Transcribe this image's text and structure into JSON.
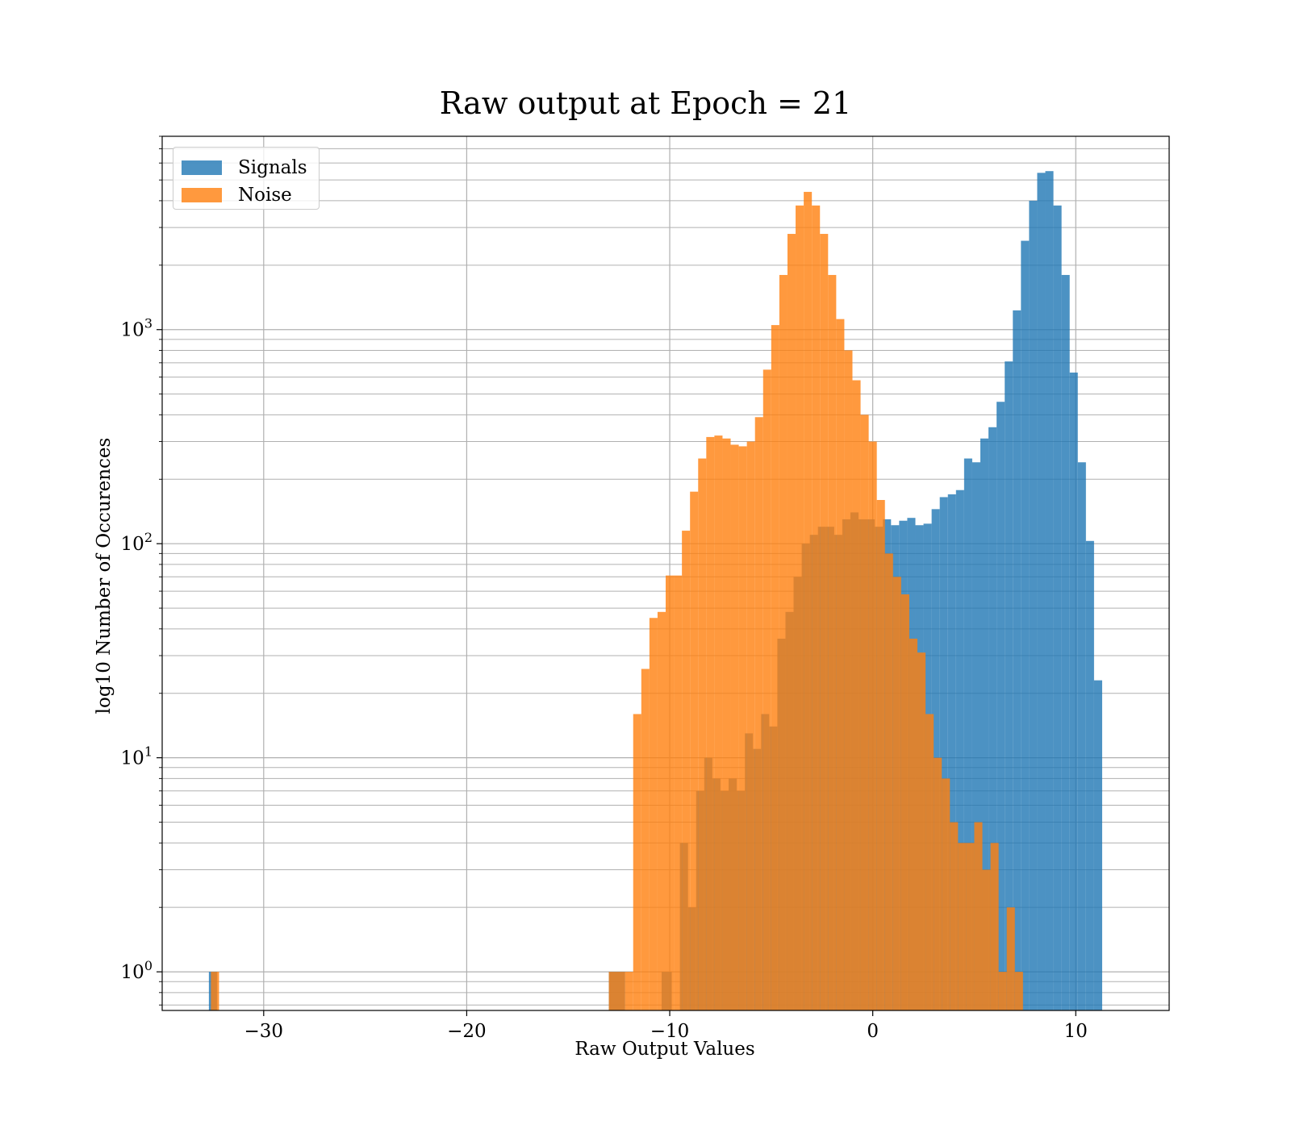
{
  "chart_data": {
    "type": "histogram",
    "title": "Raw output at Epoch = 21",
    "xlabel": "Raw Output Values",
    "ylabel": "log10 Number of Occurences",
    "xlim": [
      -35,
      14.6
    ],
    "ylim": [
      0.66,
      8000
    ],
    "yscale": "log",
    "grid": true,
    "legend_position": "upper-left",
    "x_ticks": [
      {
        "value": -30,
        "label": "−30"
      },
      {
        "value": -20,
        "label": "−20"
      },
      {
        "value": -10,
        "label": "−10"
      },
      {
        "value": 0,
        "label": "0"
      },
      {
        "value": 10,
        "label": "10"
      }
    ],
    "y_ticks": [
      {
        "value": 1,
        "base": "10",
        "exp": "0"
      },
      {
        "value": 10,
        "base": "10",
        "exp": "1"
      },
      {
        "value": 100,
        "base": "10",
        "exp": "2"
      },
      {
        "value": 1000,
        "base": "10",
        "exp": "3"
      }
    ],
    "series": [
      {
        "name": "Signals",
        "color": "#1f77b4",
        "opacity": 0.8,
        "bins": [
          [
            -32.7,
            -32.3,
            1
          ],
          [
            -13.0,
            -12.2,
            1
          ],
          [
            -10.4,
            -9.9,
            1
          ],
          [
            -9.5,
            -9.1,
            4
          ],
          [
            -9.1,
            -8.7,
            2
          ],
          [
            -8.7,
            -8.3,
            7
          ],
          [
            -8.3,
            -7.9,
            10
          ],
          [
            -7.9,
            -7.5,
            8
          ],
          [
            -7.5,
            -7.1,
            7
          ],
          [
            -7.1,
            -6.7,
            8
          ],
          [
            -6.7,
            -6.3,
            7
          ],
          [
            -6.3,
            -5.9,
            13
          ],
          [
            -5.9,
            -5.5,
            11
          ],
          [
            -5.5,
            -5.1,
            16
          ],
          [
            -5.1,
            -4.7,
            14
          ],
          [
            -4.7,
            -4.3,
            36
          ],
          [
            -4.3,
            -3.9,
            48
          ],
          [
            -3.9,
            -3.5,
            70
          ],
          [
            -3.5,
            -3.1,
            100
          ],
          [
            -3.1,
            -2.7,
            110
          ],
          [
            -2.7,
            -2.3,
            120
          ],
          [
            -2.3,
            -1.9,
            120
          ],
          [
            -1.9,
            -1.5,
            110
          ],
          [
            -1.5,
            -1.1,
            130
          ],
          [
            -1.1,
            -0.7,
            140
          ],
          [
            -0.7,
            -0.3,
            130
          ],
          [
            -0.3,
            0.1,
            130
          ],
          [
            0.1,
            0.5,
            120
          ],
          [
            0.5,
            0.9,
            130
          ],
          [
            0.9,
            1.3,
            122
          ],
          [
            1.3,
            1.7,
            128
          ],
          [
            1.7,
            2.1,
            132
          ],
          [
            2.1,
            2.5,
            122
          ],
          [
            2.5,
            2.9,
            124
          ],
          [
            2.9,
            3.3,
            145
          ],
          [
            3.3,
            3.7,
            165
          ],
          [
            3.7,
            4.1,
            170
          ],
          [
            4.1,
            4.5,
            178
          ],
          [
            4.5,
            4.9,
            250
          ],
          [
            4.9,
            5.3,
            240
          ],
          [
            5.3,
            5.7,
            310
          ],
          [
            5.7,
            6.1,
            350
          ],
          [
            6.1,
            6.5,
            460
          ],
          [
            6.5,
            6.9,
            710
          ],
          [
            6.9,
            7.3,
            1230
          ],
          [
            7.3,
            7.7,
            2600
          ],
          [
            7.7,
            8.1,
            4000
          ],
          [
            8.1,
            8.5,
            5400
          ],
          [
            8.5,
            8.9,
            5500
          ],
          [
            8.9,
            9.3,
            3800
          ],
          [
            9.3,
            9.7,
            1800
          ],
          [
            9.7,
            10.1,
            630
          ],
          [
            10.1,
            10.5,
            240
          ],
          [
            10.5,
            10.9,
            103
          ],
          [
            10.9,
            11.3,
            23
          ]
        ]
      },
      {
        "name": "Noise",
        "color": "#ff7f0e",
        "opacity": 0.8,
        "bins": [
          [
            -32.6,
            -32.2,
            1
          ],
          [
            -13.0,
            -12.2,
            1
          ],
          [
            -12.2,
            -11.8,
            1
          ],
          [
            -11.8,
            -11.4,
            16
          ],
          [
            -11.4,
            -11.0,
            26
          ],
          [
            -11.0,
            -10.6,
            45
          ],
          [
            -10.6,
            -10.2,
            48
          ],
          [
            -10.2,
            -9.8,
            71
          ],
          [
            -9.8,
            -9.4,
            71
          ],
          [
            -9.4,
            -9.0,
            115
          ],
          [
            -9.0,
            -8.6,
            175
          ],
          [
            -8.6,
            -8.2,
            250
          ],
          [
            -8.2,
            -7.8,
            315
          ],
          [
            -7.8,
            -7.4,
            320
          ],
          [
            -7.4,
            -7.0,
            310
          ],
          [
            -7.0,
            -6.6,
            290
          ],
          [
            -6.6,
            -6.2,
            285
          ],
          [
            -6.2,
            -5.8,
            300
          ],
          [
            -5.8,
            -5.4,
            390
          ],
          [
            -5.4,
            -5.0,
            650
          ],
          [
            -5.0,
            -4.6,
            1050
          ],
          [
            -4.6,
            -4.2,
            1800
          ],
          [
            -4.2,
            -3.8,
            2800
          ],
          [
            -3.8,
            -3.4,
            3800
          ],
          [
            -3.4,
            -3.0,
            4400
          ],
          [
            -3.0,
            -2.6,
            3800
          ],
          [
            -2.6,
            -2.2,
            2800
          ],
          [
            -2.2,
            -1.8,
            1800
          ],
          [
            -1.8,
            -1.4,
            1120
          ],
          [
            -1.4,
            -1.0,
            800
          ],
          [
            -1.0,
            -0.6,
            580
          ],
          [
            -0.6,
            -0.2,
            400
          ],
          [
            -0.2,
            0.2,
            300
          ],
          [
            0.2,
            0.6,
            160
          ],
          [
            0.6,
            1.0,
            90
          ],
          [
            1.0,
            1.4,
            70
          ],
          [
            1.4,
            1.8,
            58
          ],
          [
            1.8,
            2.2,
            36
          ],
          [
            2.2,
            2.6,
            31
          ],
          [
            2.6,
            3.0,
            16
          ],
          [
            3.0,
            3.4,
            10
          ],
          [
            3.4,
            3.8,
            8
          ],
          [
            3.8,
            4.2,
            5
          ],
          [
            4.2,
            4.6,
            4
          ],
          [
            4.6,
            5.0,
            4
          ],
          [
            5.0,
            5.4,
            5
          ],
          [
            5.4,
            5.8,
            3
          ],
          [
            5.8,
            6.2,
            4
          ],
          [
            6.2,
            6.6,
            1
          ],
          [
            6.6,
            7.0,
            2
          ],
          [
            7.0,
            7.4,
            1
          ]
        ]
      }
    ]
  },
  "legend": {
    "items": [
      {
        "label": "Signals",
        "color": "#1f77b4"
      },
      {
        "label": "Noise",
        "color": "#ff7f0e"
      }
    ]
  }
}
